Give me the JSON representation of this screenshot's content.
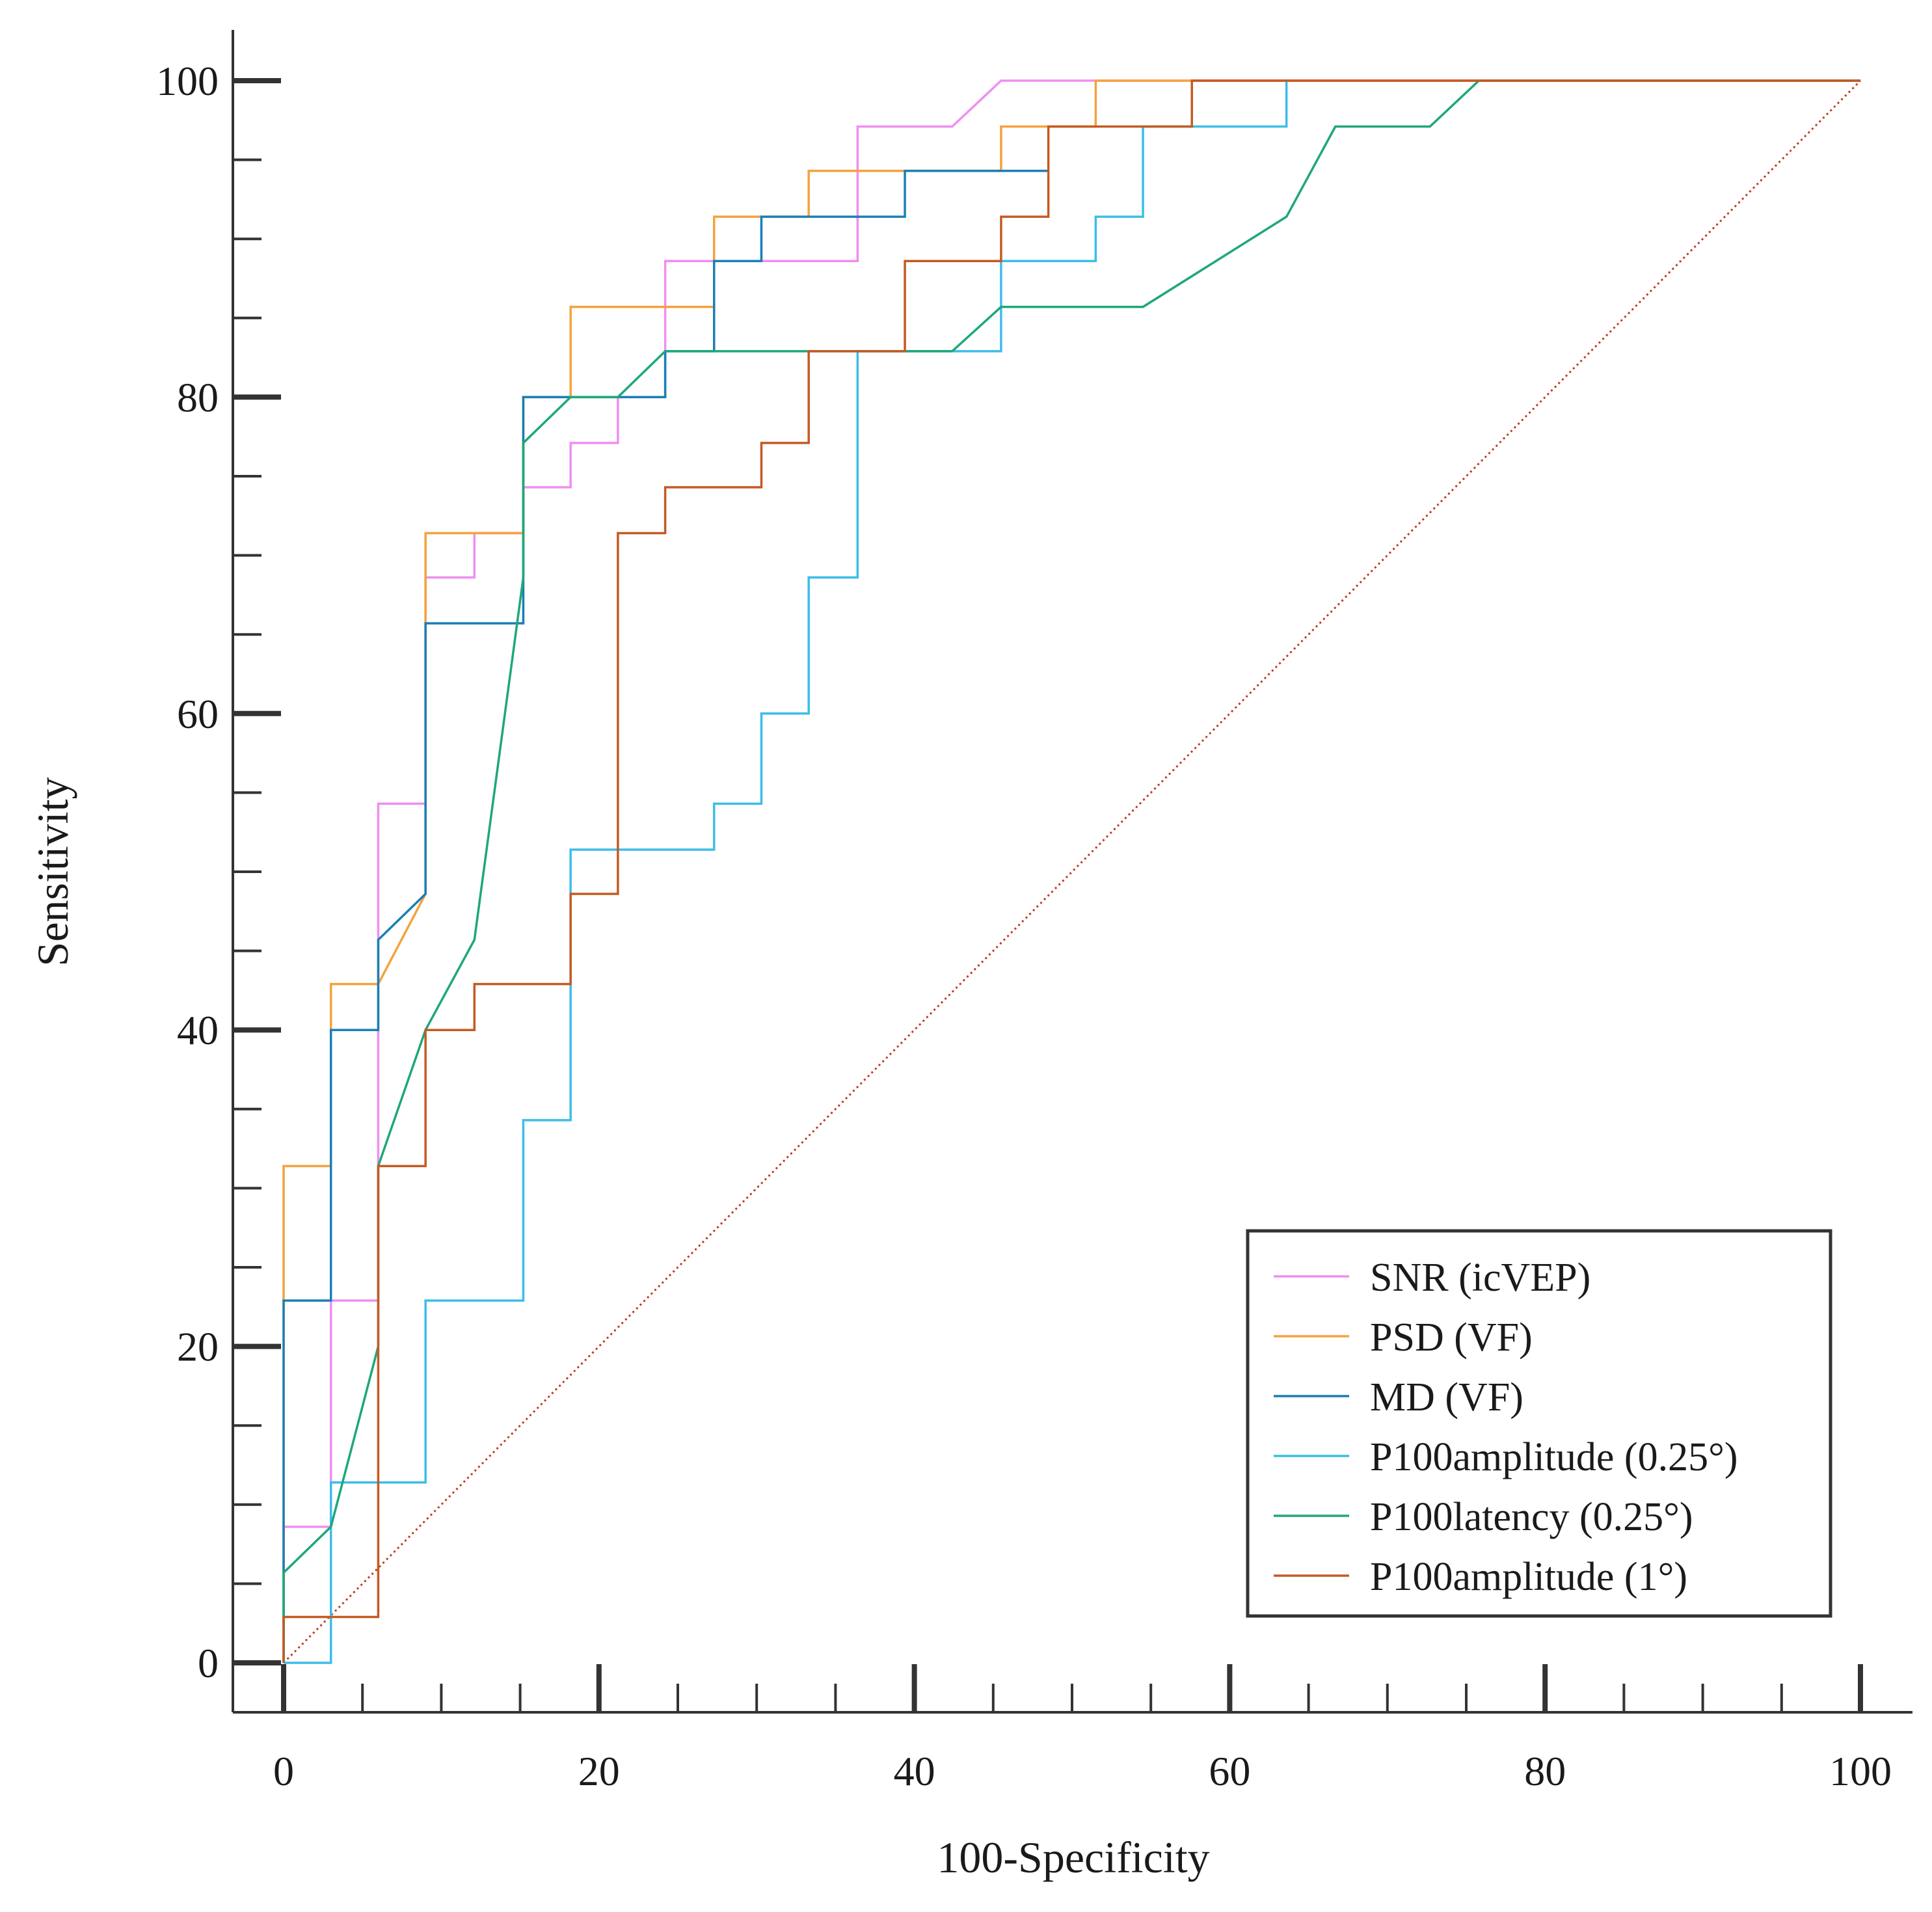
{
  "chart_data": {
    "type": "line",
    "title": "",
    "xlabel": "100-Specificity",
    "ylabel": "Sensitivity",
    "xlim": [
      0,
      100
    ],
    "ylim": [
      0,
      100
    ],
    "x_ticks": [
      "0",
      "20",
      "40",
      "60",
      "80",
      "100"
    ],
    "y_ticks": [
      "0",
      "20",
      "40",
      "60",
      "80",
      "100"
    ],
    "grid": false,
    "legend_position": "bottom-right",
    "reference_line": {
      "style": "dotted",
      "color": "#c0392b",
      "points": [
        [
          0,
          0
        ],
        [
          100,
          100
        ]
      ]
    },
    "series": [
      {
        "name": "SNR (icVEP)",
        "color": "#f08ef2",
        "points": [
          [
            0,
            0
          ],
          [
            0,
            8.6
          ],
          [
            3,
            8.6
          ],
          [
            3,
            11.4
          ],
          [
            3,
            22.9
          ],
          [
            6,
            22.9
          ],
          [
            6,
            40
          ],
          [
            6,
            45.7
          ],
          [
            6,
            54.3
          ],
          [
            9,
            54.3
          ],
          [
            9,
            68.6
          ],
          [
            12.1,
            68.6
          ],
          [
            12.1,
            71.4
          ],
          [
            15.2,
            71.4
          ],
          [
            15.2,
            74.3
          ],
          [
            18.2,
            74.3
          ],
          [
            18.2,
            77.1
          ],
          [
            21.2,
            77.1
          ],
          [
            21.2,
            80
          ],
          [
            24.2,
            80
          ],
          [
            24.2,
            82.9
          ],
          [
            24.2,
            88.6
          ],
          [
            36.4,
            88.6
          ],
          [
            36.4,
            97.1
          ],
          [
            42.4,
            97.1
          ],
          [
            45.5,
            100
          ],
          [
            100,
            100
          ]
        ]
      },
      {
        "name": "PSD (VF)",
        "color": "#f5a23d",
        "points": [
          [
            0,
            0
          ],
          [
            0,
            31.4
          ],
          [
            3,
            31.4
          ],
          [
            3,
            42.9
          ],
          [
            6,
            42.9
          ],
          [
            9,
            48.6
          ],
          [
            9,
            71.4
          ],
          [
            15.2,
            71.4
          ],
          [
            15.2,
            80
          ],
          [
            18.2,
            80
          ],
          [
            18.2,
            85.7
          ],
          [
            27.3,
            85.7
          ],
          [
            27.3,
            91.4
          ],
          [
            33.3,
            91.4
          ],
          [
            33.3,
            94.3
          ],
          [
            45.5,
            94.3
          ],
          [
            45.5,
            97.1
          ],
          [
            51.5,
            97.1
          ],
          [
            51.5,
            100
          ],
          [
            100,
            100
          ]
        ]
      },
      {
        "name": "MD (VF)",
        "color": "#1a7fb5",
        "points": [
          [
            0,
            0
          ],
          [
            0,
            22.9
          ],
          [
            3,
            22.9
          ],
          [
            3,
            40
          ],
          [
            6,
            40
          ],
          [
            6,
            45.7
          ],
          [
            9,
            48.6
          ],
          [
            9,
            65.7
          ],
          [
            15.2,
            65.7
          ],
          [
            15.2,
            80
          ],
          [
            24.2,
            80
          ],
          [
            24.2,
            82.9
          ],
          [
            27.3,
            82.9
          ],
          [
            27.3,
            88.6
          ],
          [
            30.3,
            88.6
          ],
          [
            30.3,
            91.4
          ],
          [
            39.4,
            91.4
          ],
          [
            39.4,
            94.3
          ],
          [
            48.5,
            94.3
          ]
        ]
      },
      {
        "name": "P100amplitude (0.25°)",
        "color": "#3dbde8",
        "points": [
          [
            0,
            0
          ],
          [
            3,
            0
          ],
          [
            3,
            11.4
          ],
          [
            9,
            11.4
          ],
          [
            9,
            22.9
          ],
          [
            15.2,
            22.9
          ],
          [
            15.2,
            34.3
          ],
          [
            18.2,
            34.3
          ],
          [
            18.2,
            51.4
          ],
          [
            27.3,
            51.4
          ],
          [
            27.3,
            54.3
          ],
          [
            30.3,
            54.3
          ],
          [
            30.3,
            60
          ],
          [
            33.3,
            60
          ],
          [
            33.3,
            68.6
          ],
          [
            36.4,
            68.6
          ],
          [
            36.4,
            82.9
          ],
          [
            45.5,
            82.9
          ],
          [
            45.5,
            88.6
          ],
          [
            51.5,
            88.6
          ],
          [
            51.5,
            91.4
          ],
          [
            54.5,
            91.4
          ],
          [
            54.5,
            97.1
          ],
          [
            63.6,
            97.1
          ],
          [
            63.6,
            100
          ]
        ]
      },
      {
        "name": "P100latency (0.25°)",
        "color": "#1ea77a",
        "points": [
          [
            0,
            0
          ],
          [
            0,
            5.7
          ],
          [
            3,
            8.6
          ],
          [
            6,
            20
          ],
          [
            6,
            31.4
          ],
          [
            9,
            40
          ],
          [
            12.1,
            45.7
          ],
          [
            15.2,
            68.6
          ],
          [
            15.2,
            77.1
          ],
          [
            18.2,
            80
          ],
          [
            21.2,
            80
          ],
          [
            24.2,
            82.9
          ],
          [
            42.4,
            82.9
          ],
          [
            45.5,
            85.7
          ],
          [
            54.5,
            85.7
          ],
          [
            63.6,
            91.4
          ],
          [
            66.7,
            97.1
          ],
          [
            72.7,
            97.1
          ],
          [
            75.8,
            100
          ],
          [
            100,
            100
          ]
        ]
      },
      {
        "name": "P100amplitude (1°)",
        "color": "#c45a23",
        "points": [
          [
            0,
            0
          ],
          [
            0,
            2.9
          ],
          [
            6,
            2.9
          ],
          [
            6,
            31.4
          ],
          [
            9,
            31.4
          ],
          [
            9,
            40
          ],
          [
            12.1,
            40
          ],
          [
            12.1,
            42.9
          ],
          [
            18.2,
            42.9
          ],
          [
            18.2,
            48.6
          ],
          [
            21.2,
            48.6
          ],
          [
            21.2,
            71.4
          ],
          [
            24.2,
            71.4
          ],
          [
            24.2,
            74.3
          ],
          [
            30.3,
            74.3
          ],
          [
            30.3,
            77.1
          ],
          [
            33.3,
            77.1
          ],
          [
            33.3,
            82.9
          ],
          [
            39.4,
            82.9
          ],
          [
            39.4,
            88.6
          ],
          [
            45.5,
            88.6
          ],
          [
            45.5,
            91.4
          ],
          [
            48.5,
            91.4
          ],
          [
            48.5,
            97.1
          ],
          [
            57.6,
            97.1
          ],
          [
            57.6,
            100
          ],
          [
            100,
            100
          ]
        ]
      }
    ]
  }
}
